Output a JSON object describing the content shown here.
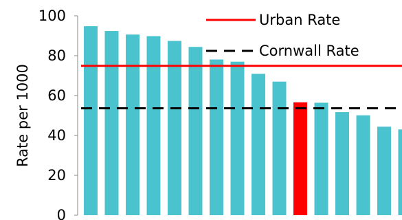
{
  "chart_data": {
    "type": "bar",
    "title": "",
    "xlabel": "",
    "ylabel": "Rate per 1000",
    "ylim": [
      0,
      100
    ],
    "yticks": [
      0,
      20,
      40,
      60,
      80,
      100
    ],
    "ytick_labels": [
      "0",
      "20",
      "40",
      "60",
      "80",
      "100"
    ],
    "values": [
      94.8,
      92.4,
      90.6,
      89.8,
      87.4,
      84.4,
      78.1,
      77.0,
      70.9,
      67.0,
      56.6,
      56.4,
      51.7,
      50.1,
      44.4,
      43.0
    ],
    "highlight_index": 10,
    "bar_color": "#4BC3CF",
    "highlight_color": "#FF0000",
    "grid": false,
    "reference_lines": [
      {
        "name": "Urban Rate",
        "value": 74.9,
        "color": "#FF0000",
        "style": "solid"
      },
      {
        "name": "Cornwall Rate",
        "value": 53.6,
        "color": "#000000",
        "style": "dashed"
      }
    ],
    "legend": {
      "placement": "top-right",
      "entries": [
        "Urban Rate",
        "Cornwall Rate"
      ]
    }
  }
}
